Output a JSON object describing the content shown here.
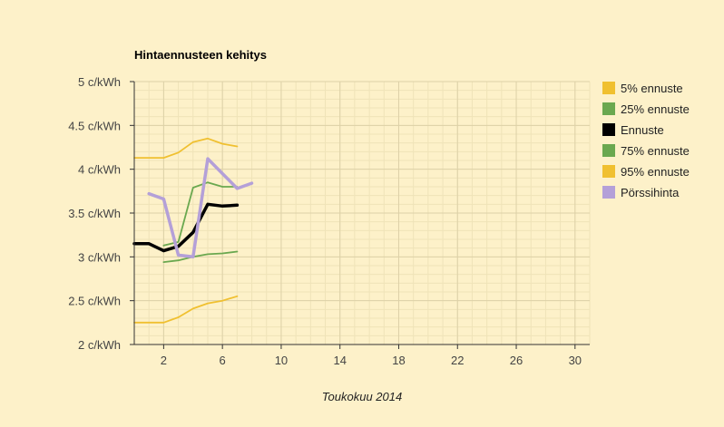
{
  "chart_data": {
    "type": "line",
    "title": "Hintaennusteen kehitys",
    "xlabel": "Toukokuu 2014",
    "ylabel": "",
    "xlim": [
      0,
      31
    ],
    "ylim": [
      2,
      5
    ],
    "x_minor_step": 1,
    "y_minor_step": 0.1,
    "x_ticks": [
      2,
      6,
      10,
      14,
      18,
      22,
      26,
      30
    ],
    "x_tick_labels": [
      "2",
      "6",
      "10",
      "14",
      "18",
      "22",
      "26",
      "30"
    ],
    "y_ticks": [
      2,
      2.5,
      3,
      3.5,
      4,
      4.5,
      5
    ],
    "y_tick_labels": [
      "2 c/kWh",
      "2.5 c/kWh",
      "3 c/kWh",
      "3.5 c/kWh",
      "4 c/kWh",
      "4.5 c/kWh",
      "5 c/kWh"
    ],
    "legend_position": "right",
    "grid": true,
    "series": [
      {
        "name": "5% ennuste",
        "color": "#f0c030",
        "width": 1.8,
        "x": [
          0,
          1,
          2,
          3,
          4,
          5,
          6,
          7
        ],
        "y": [
          2.25,
          2.25,
          2.25,
          2.31,
          2.41,
          2.47,
          2.5,
          2.55
        ]
      },
      {
        "name": "25% ennuste",
        "color": "#6aa84f",
        "width": 1.8,
        "x": [
          2,
          3,
          4,
          5,
          6,
          7
        ],
        "y": [
          2.94,
          2.96,
          3.0,
          3.03,
          3.04,
          3.06
        ]
      },
      {
        "name": "Ennuste",
        "color": "#000000",
        "width": 3.5,
        "x": [
          0,
          1,
          2,
          3,
          4,
          5,
          6,
          7
        ],
        "y": [
          3.15,
          3.15,
          3.07,
          3.12,
          3.28,
          3.6,
          3.58,
          3.59
        ]
      },
      {
        "name": "75% ennuste",
        "color": "#6aa84f",
        "width": 1.8,
        "x": [
          2,
          3,
          4,
          5,
          6,
          7
        ],
        "y": [
          3.13,
          3.17,
          3.79,
          3.85,
          3.8,
          3.8
        ]
      },
      {
        "name": "95% ennuste",
        "color": "#f0c030",
        "width": 1.8,
        "x": [
          0,
          1,
          2,
          3,
          4,
          5,
          6,
          7
        ],
        "y": [
          4.13,
          4.13,
          4.13,
          4.19,
          4.31,
          4.35,
          4.29,
          4.26
        ]
      },
      {
        "name": "Pörssihinta",
        "color": "#b4a0d8",
        "width": 3.5,
        "x": [
          1,
          2,
          3,
          4,
          5,
          6,
          7,
          8
        ],
        "y": [
          3.72,
          3.66,
          3.02,
          3.0,
          4.12,
          3.95,
          3.78,
          3.84
        ]
      }
    ]
  }
}
